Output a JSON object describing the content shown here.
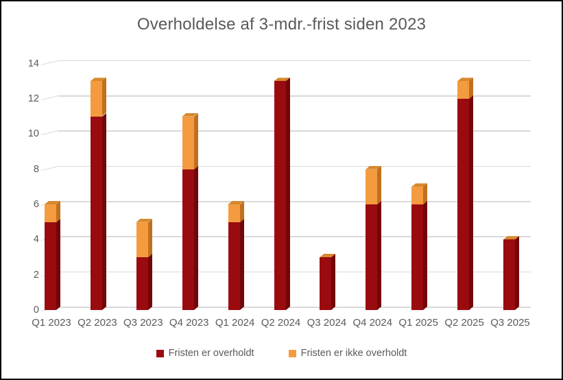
{
  "chart_data": {
    "type": "bar",
    "stacked": true,
    "title": "Overholdelse af 3-mdr.-frist siden 2023",
    "categories": [
      "Q1 2023",
      "Q2 2023",
      "Q3 2023",
      "Q4 2023",
      "Q1 2024",
      "Q2 2024",
      "Q3 2024",
      "Q4 2024",
      "Q1 2025",
      "Q2 2025",
      "Q3 2025"
    ],
    "series": [
      {
        "name": "Fristen er overholdt",
        "color": "#9A0B10",
        "side_color": "#730609",
        "values": [
          5,
          11,
          3,
          8,
          5,
          13,
          3,
          6,
          6,
          12,
          4
        ]
      },
      {
        "name": "Fristen er ikke overholdt",
        "color": "#F49B40",
        "side_color": "#C0701E",
        "values": [
          1,
          2,
          2,
          3,
          1,
          0,
          0,
          2,
          1,
          1,
          0
        ]
      }
    ],
    "y_axis": {
      "min": 0,
      "max": 14,
      "step": 2,
      "tick_labels": [
        "0",
        "2",
        "4",
        "6",
        "8",
        "10",
        "12",
        "14"
      ]
    },
    "xlabel": "",
    "ylabel": "",
    "grid": true,
    "legend_position": "bottom",
    "style": {
      "bar_top_face_color": "#D6892F",
      "gridline_color": "#D9D9D9",
      "text_color": "#595959",
      "frame_color": "#000000",
      "background_color": "#FFFFFF"
    }
  }
}
